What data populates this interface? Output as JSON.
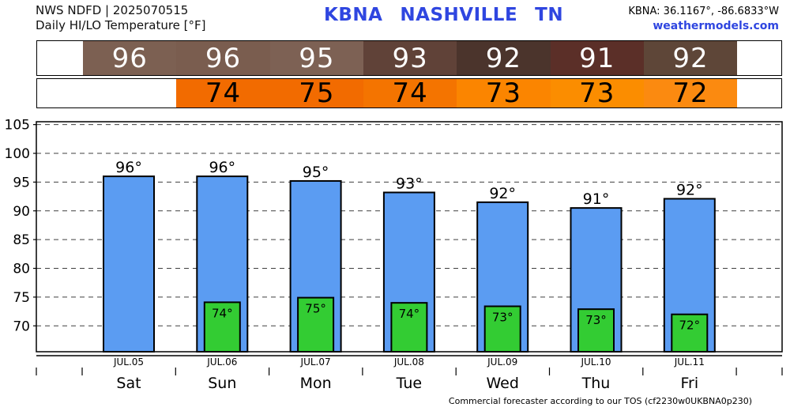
{
  "header": {
    "line1": "NWS NDFD | 2025070515",
    "line2": "Daily HI/LO Temperature [°F]",
    "station_code": "KBNA",
    "city": "NASHVILLE",
    "state": "TN",
    "coords": "KBNA: 36.1167°, -86.6833°W",
    "site": "weathermodels.com"
  },
  "hi_strip": {
    "values": [
      "96",
      "96",
      "95",
      "93",
      "92",
      "91",
      "92"
    ],
    "colors": [
      "#7c6052",
      "#7a5d4f",
      "#7d6154",
      "#604238",
      "#4b342c",
      "#5b2f28",
      "#5e4638"
    ]
  },
  "lo_strip": {
    "values": [
      "",
      "74",
      "75",
      "74",
      "73",
      "73",
      "72"
    ],
    "colors": [
      "",
      "#f26b00",
      "#f26b00",
      "#f47400",
      "#fb8500",
      "#fb8d00",
      "#fb8a10"
    ]
  },
  "chart_data": {
    "type": "bar",
    "categories": [
      "Sat",
      "Sun",
      "Mon",
      "Tue",
      "Wed",
      "Thu",
      "Fri"
    ],
    "dates": [
      "JUL.05",
      "JUL.06",
      "JUL.07",
      "JUL.08",
      "JUL.09",
      "JUL.10",
      "JUL.11"
    ],
    "series": [
      {
        "values": [
          96,
          96,
          95.2,
          93.2,
          91.5,
          90.5,
          92.1
        ],
        "labels": [
          "96°",
          "96°",
          "95°",
          "93°",
          "92°",
          "91°",
          "92°"
        ],
        "color": "#5b9cf2"
      },
      {
        "values": [
          null,
          74.1,
          74.9,
          74.0,
          73.4,
          72.9,
          72.0
        ],
        "labels": [
          "",
          "74°",
          "75°",
          "74°",
          "73°",
          "73°",
          "72°"
        ],
        "color": "#33cc33"
      }
    ],
    "ylim": [
      65.5,
      105.5
    ],
    "yticks": [
      70,
      75,
      80,
      85,
      90,
      95,
      100,
      105
    ],
    "grid": true
  },
  "footer": "Commercial forecaster according to our TOS (cf2230w0UKBNA0p230)"
}
